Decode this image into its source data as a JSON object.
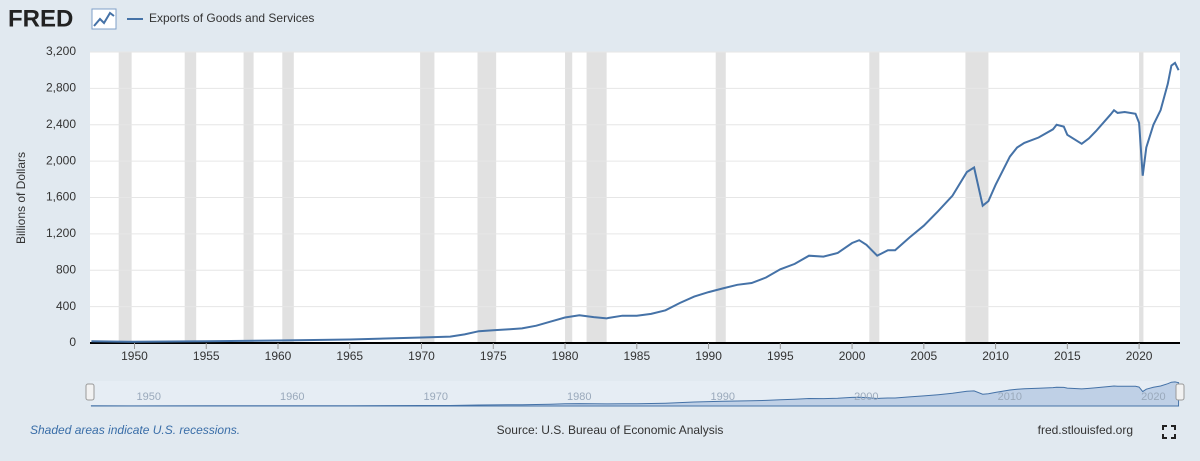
{
  "logo": "FRED",
  "chart_data": {
    "type": "line",
    "legend": "Exports of Goods and Services",
    "y_label": "Billions of Dollars",
    "x": [
      1947,
      1950,
      1955,
      1960,
      1965,
      1970,
      1972,
      1973,
      1974,
      1975,
      1976,
      1977,
      1978,
      1979,
      1980,
      1981,
      1982,
      1982.9,
      1983,
      1984,
      1985,
      1986,
      1987,
      1988,
      1989,
      1990,
      1991,
      1992,
      1993,
      1994,
      1995,
      1996,
      1997,
      1998,
      1999,
      2000,
      2000.5,
      2001,
      2001.75,
      2002,
      2002.5,
      2003,
      2004,
      2005,
      2006,
      2007,
      2008,
      2008.5,
      2009.1,
      2009.5,
      2010,
      2011,
      2011.5,
      2012,
      2013,
      2014,
      2014.25,
      2014.75,
      2015,
      2016,
      2016.5,
      2017,
      2018,
      2018.25,
      2018.5,
      2019,
      2019.75,
      2020,
      2020.25,
      2020.5,
      2021,
      2021.5,
      2022,
      2022.25,
      2022.5,
      2022.75
    ],
    "series": [
      {
        "name": "Exports of Goods and Services",
        "color": "#4572a7",
        "values": [
          20,
          13,
          20,
          27,
          39,
          60,
          70,
          95,
          130,
          140,
          150,
          160,
          190,
          235,
          280,
          305,
          285,
          270,
          275,
          300,
          300,
          320,
          360,
          440,
          510,
          560,
          600,
          640,
          660,
          720,
          810,
          870,
          960,
          950,
          990,
          1100,
          1130,
          1080,
          960,
          980,
          1020,
          1020,
          1160,
          1290,
          1450,
          1620,
          1880,
          1930,
          1510,
          1560,
          1740,
          2050,
          2150,
          2200,
          2260,
          2350,
          2400,
          2380,
          2290,
          2190,
          2250,
          2330,
          2510,
          2560,
          2530,
          2540,
          2520,
          2420,
          1840,
          2150,
          2400,
          2560,
          2850,
          3050,
          3080,
          3000
        ]
      }
    ],
    "recessions": [
      [
        1948.9,
        1949.8
      ],
      [
        1953.5,
        1954.3
      ],
      [
        1957.6,
        1958.3
      ],
      [
        1960.3,
        1961.1
      ],
      [
        1969.9,
        1970.9
      ],
      [
        1973.9,
        1975.2
      ],
      [
        1980.0,
        1980.5
      ],
      [
        1981.5,
        1982.9
      ],
      [
        1990.5,
        1991.2
      ],
      [
        2001.2,
        2001.9
      ],
      [
        2007.9,
        2009.5
      ],
      [
        2020.0,
        2020.3
      ]
    ],
    "xlim": [
      1946.9,
      2022.85
    ],
    "xticks": [
      1950,
      1955,
      1960,
      1965,
      1970,
      1975,
      1980,
      1985,
      1990,
      1995,
      2000,
      2005,
      2010,
      2015,
      2020
    ],
    "ylim": [
      0,
      3200
    ],
    "yticks": [
      0,
      400,
      800,
      {
        "value": 1200,
        "label": "1,200"
      },
      {
        "value": 1600,
        "label": "1,600"
      },
      {
        "value": 2000,
        "label": "2,000"
      },
      {
        "value": 2400,
        "label": "2,400"
      },
      {
        "value": 2800,
        "label": "2,800"
      },
      {
        "value": 3200,
        "label": "3,200"
      }
    ],
    "navigator_xticks": [
      1950,
      1960,
      1970,
      1980,
      1990,
      2000,
      2010,
      2020
    ],
    "grid": true
  },
  "footer": {
    "note": "Shaded areas indicate U.S. recessions.",
    "source": "Source: U.S. Bureau of Economic Analysis",
    "site": "fred.stlouisfed.org"
  }
}
